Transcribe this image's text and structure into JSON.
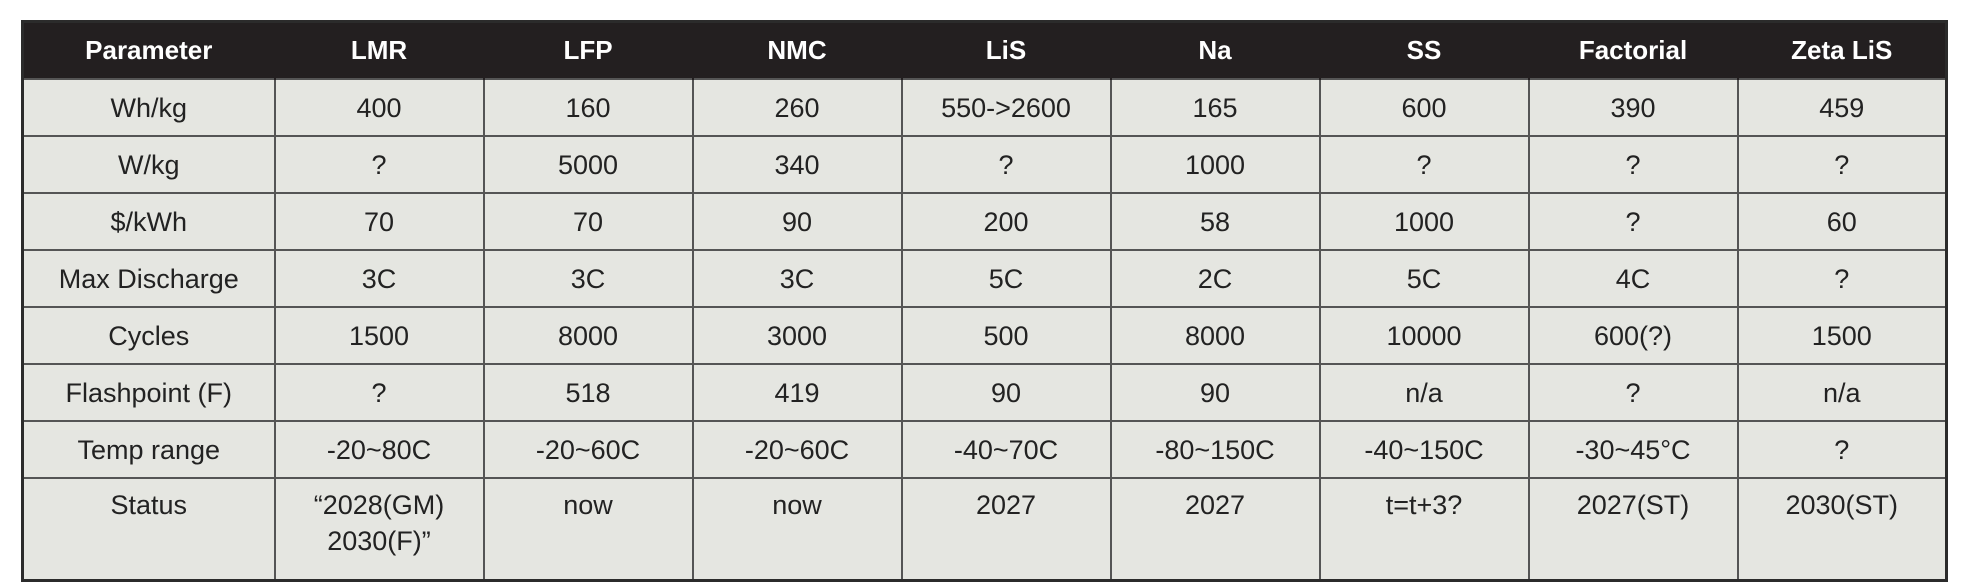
{
  "table": {
    "header": [
      "Parameter",
      "LMR",
      "LFP",
      "NMC",
      "LiS",
      "Na",
      "SS",
      "Factorial",
      "Zeta LiS"
    ],
    "rows": [
      [
        "Wh/kg",
        "400",
        "160",
        "260",
        "550->2600",
        "165",
        "600",
        "390",
        "459"
      ],
      [
        "W/kg",
        "?",
        "5000",
        "340",
        "?",
        "1000",
        "?",
        "?",
        "?"
      ],
      [
        "$/kWh",
        "70",
        "70",
        "90",
        "200",
        "58",
        "1000",
        "?",
        "60"
      ],
      [
        "Max Discharge",
        "3C",
        "3C",
        "3C",
        "5C",
        "2C",
        "5C",
        "4C",
        "?"
      ],
      [
        "Cycles",
        "1500",
        "8000",
        "3000",
        "500",
        "8000",
        "10000",
        "600(?)",
        "1500"
      ],
      [
        "Flashpoint (F)",
        "?",
        "518",
        "419",
        "90",
        "90",
        "n/a",
        "?",
        "n/a"
      ],
      [
        "Temp range",
        "-20~80C",
        "-20~60C",
        "-20~60C",
        "-40~70C",
        "-80~150C",
        "-40~150C",
        "-30~45°C",
        "?"
      ],
      [
        "Status",
        "“2028(GM)\n2030(F)”",
        "now",
        "now",
        "2027",
        "2027",
        "t=t+3?",
        "2027(ST)",
        "2030(ST)"
      ]
    ]
  }
}
